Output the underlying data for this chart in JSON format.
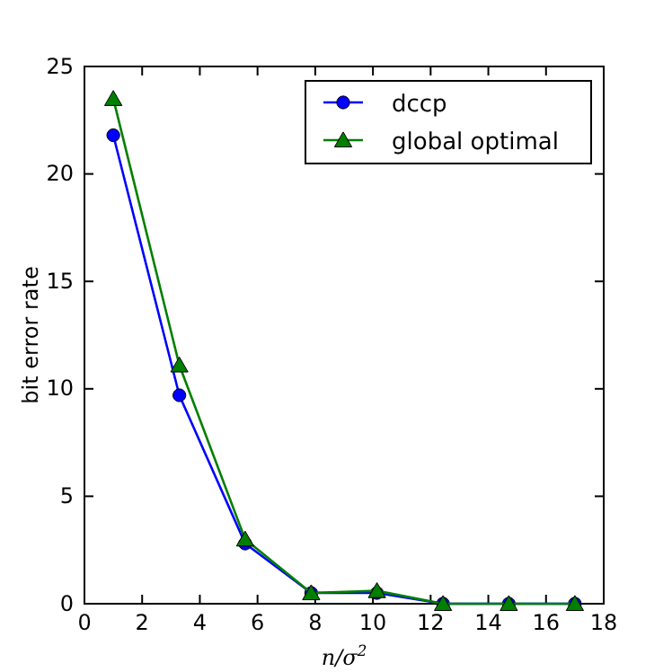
{
  "chart_data": {
    "type": "line",
    "xlabel": "n/σ$^{2}$",
    "ylabel": "bit error rate",
    "x": [
      1,
      3.29,
      5.57,
      7.86,
      10.14,
      12.43,
      14.71,
      17.0
    ],
    "series": [
      {
        "name": "dccp",
        "color": "#0000ff",
        "marker": "circle",
        "values": [
          21.8,
          9.7,
          2.8,
          0.5,
          0.5,
          0,
          0,
          0
        ]
      },
      {
        "name": "global optimal",
        "color": "#007f00",
        "marker": "triangle",
        "values": [
          23.5,
          11.1,
          3.0,
          0.5,
          0.6,
          0,
          0,
          0
        ]
      }
    ],
    "xlim": [
      0,
      18
    ],
    "xticks": [
      0,
      2,
      4,
      6,
      8,
      10,
      12,
      14,
      16,
      18
    ],
    "ylim": [
      0,
      25
    ],
    "yticks": [
      0,
      5,
      10,
      15,
      20,
      25
    ],
    "grid": false,
    "legend": "top right",
    "line_style": "solid"
  }
}
